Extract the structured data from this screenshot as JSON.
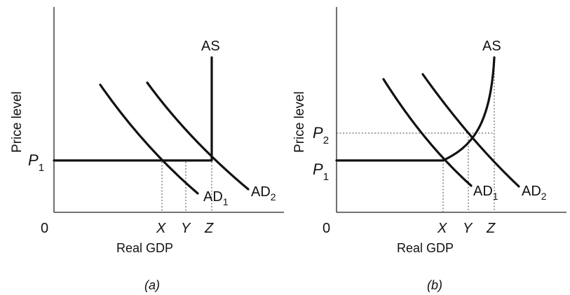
{
  "panels": [
    {
      "caption": "(a)",
      "y_axis_label": "Price  level",
      "x_axis_label": "Real GDP",
      "origin_label": "0",
      "price_labels": [
        {
          "main": "P",
          "sub": "1"
        }
      ],
      "quantity_labels": [
        "X",
        "Y",
        "Z"
      ],
      "curves": {
        "as": {
          "main": "AS",
          "sub": ""
        },
        "ad1": {
          "main": "AD",
          "sub": "1"
        },
        "ad2": {
          "main": "AD",
          "sub": "2"
        }
      }
    },
    {
      "caption": "(b)",
      "y_axis_label": "Price  level",
      "x_axis_label": "Real GDP",
      "origin_label": "0",
      "price_labels": [
        {
          "main": "P",
          "sub": "2"
        },
        {
          "main": "P",
          "sub": "1"
        }
      ],
      "quantity_labels": [
        "X",
        "Y",
        "Z"
      ],
      "curves": {
        "as": {
          "main": "AS",
          "sub": ""
        },
        "ad1": {
          "main": "AD",
          "sub": "1"
        },
        "ad2": {
          "main": "AD",
          "sub": "2"
        }
      }
    }
  ]
}
